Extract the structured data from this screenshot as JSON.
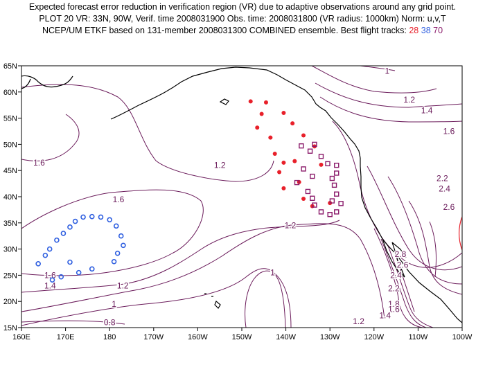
{
  "header": {
    "line1": "Expected forecast error reduction in verification region (VR) due to adaptive observations around any grid point.",
    "line2": "PLOT 20 VR: 33N, 90W, Verif. time 2008031900 Obs. time: 2008031800 (VR radius: 1000km) Norm: u,v,T",
    "line3_prefix": "NCEP/UM ETKF based on 131-member 2008031300 COMBINED ensemble.  Best flight tracks:",
    "track_a": "28",
    "track_b": "38",
    "track_c": "70"
  },
  "map": {
    "lon_range": [
      160,
      260
    ],
    "lat_range": [
      15,
      65
    ],
    "lon_ticks": [
      "160E",
      "170E",
      "180",
      "170W",
      "160W",
      "150W",
      "140W",
      "130W",
      "120W",
      "110W",
      "100W"
    ],
    "lat_ticks": [
      "15N",
      "20N",
      "25N",
      "30N",
      "35N",
      "40N",
      "45N",
      "50N",
      "55N",
      "60N",
      "65N"
    ],
    "contour_labels": [
      {
        "text": "1",
        "lon": 243,
        "lat": 64
      },
      {
        "text": "1.2",
        "lon": 248,
        "lat": 58.5
      },
      {
        "text": "1.4",
        "lon": 252,
        "lat": 56.5
      },
      {
        "text": "1.6",
        "lon": 257,
        "lat": 52.5
      },
      {
        "text": "1.6",
        "lon": 164,
        "lat": 46.5
      },
      {
        "text": "1.2",
        "lon": 205,
        "lat": 46
      },
      {
        "text": "2.2",
        "lon": 255.5,
        "lat": 43.5
      },
      {
        "text": "2.4",
        "lon": 256,
        "lat": 41.5
      },
      {
        "text": "2.6",
        "lon": 257,
        "lat": 38
      },
      {
        "text": "1.6",
        "lon": 182,
        "lat": 39.5
      },
      {
        "text": "1.2",
        "lon": 221,
        "lat": 34.5
      },
      {
        "text": "1.6",
        "lon": 166.5,
        "lat": 25
      },
      {
        "text": "1.4",
        "lon": 166.5,
        "lat": 23
      },
      {
        "text": "1.2",
        "lon": 183,
        "lat": 23
      },
      {
        "text": "1",
        "lon": 217,
        "lat": 25.5
      },
      {
        "text": "1",
        "lon": 181,
        "lat": 19.5
      },
      {
        "text": "0.8",
        "lon": 180,
        "lat": 16
      },
      {
        "text": "2.8",
        "lon": 246,
        "lat": 29
      },
      {
        "text": "2.6",
        "lon": 246.5,
        "lat": 27
      },
      {
        "text": "2.4",
        "lon": 245,
        "lat": 25
      },
      {
        "text": "2.2",
        "lon": 244.5,
        "lat": 22.5
      },
      {
        "text": "1.8",
        "lon": 244.5,
        "lat": 19.5
      },
      {
        "text": "1.6",
        "lon": 244.5,
        "lat": 18.5
      },
      {
        "text": "1.4",
        "lon": 242.5,
        "lat": 17.3
      },
      {
        "text": "1.2",
        "lon": 236.5,
        "lat": 16.2
      }
    ],
    "verification_region": {
      "lon": 270,
      "lat": 33,
      "radius_km": 1000,
      "color": "#e8202a"
    },
    "tracks": [
      {
        "id": "28",
        "color": "#e8202a",
        "shape": "dot",
        "points": [
          [
            212,
            58.2
          ],
          [
            215.5,
            58
          ],
          [
            214.5,
            55.8
          ],
          [
            219.5,
            56
          ],
          [
            213.5,
            53.2
          ],
          [
            221.5,
            54
          ],
          [
            224,
            51.7
          ],
          [
            216.5,
            51.3
          ],
          [
            226.5,
            49.6
          ],
          [
            217.5,
            48.2
          ],
          [
            222,
            46.8
          ],
          [
            219.5,
            46.5
          ],
          [
            228,
            46.1
          ],
          [
            218.5,
            44.7
          ],
          [
            223,
            42.8
          ],
          [
            219.5,
            41.6
          ],
          [
            224,
            39.6
          ],
          [
            230,
            38.8
          ],
          [
            226,
            38.2
          ]
        ]
      },
      {
        "id": "38",
        "color": "#2f5fe0",
        "shape": "ring",
        "points": [
          [
            176,
            36.2
          ],
          [
            174,
            36.1
          ],
          [
            178,
            36.1
          ],
          [
            180,
            35.6
          ],
          [
            172.2,
            35.3
          ],
          [
            181.5,
            34.4
          ],
          [
            171,
            34.2
          ],
          [
            182.6,
            32.5
          ],
          [
            169.5,
            33
          ],
          [
            183.1,
            30.7
          ],
          [
            168,
            31.7
          ],
          [
            181.8,
            29.2
          ],
          [
            166.4,
            30
          ],
          [
            181,
            27.6
          ],
          [
            165.4,
            28.8
          ],
          [
            171,
            27.5
          ],
          [
            163.8,
            27.2
          ],
          [
            176,
            26.2
          ],
          [
            173,
            25.5
          ],
          [
            169,
            24.7
          ],
          [
            167,
            24.1
          ]
        ]
      },
      {
        "id": "70",
        "color": "#8a1a6a",
        "shape": "square",
        "points": [
          [
            223.5,
            49.7
          ],
          [
            226.5,
            50
          ],
          [
            225.5,
            48.7
          ],
          [
            228,
            47.7
          ],
          [
            229.5,
            46.3
          ],
          [
            231.5,
            46
          ],
          [
            224,
            45.3
          ],
          [
            226,
            43.9
          ],
          [
            231.5,
            44.5
          ],
          [
            230.5,
            43.5
          ],
          [
            222.5,
            42.7
          ],
          [
            231,
            42.2
          ],
          [
            231.5,
            40.5
          ],
          [
            225,
            41
          ],
          [
            226,
            39.7
          ],
          [
            230.5,
            39.2
          ],
          [
            226.5,
            38.4
          ],
          [
            232.5,
            38.7
          ],
          [
            228,
            37.1
          ],
          [
            230,
            36.6
          ],
          [
            231.5,
            37.1
          ]
        ]
      }
    ],
    "colors": {
      "contour": "#6a1a5a",
      "coast": "#000000"
    }
  }
}
